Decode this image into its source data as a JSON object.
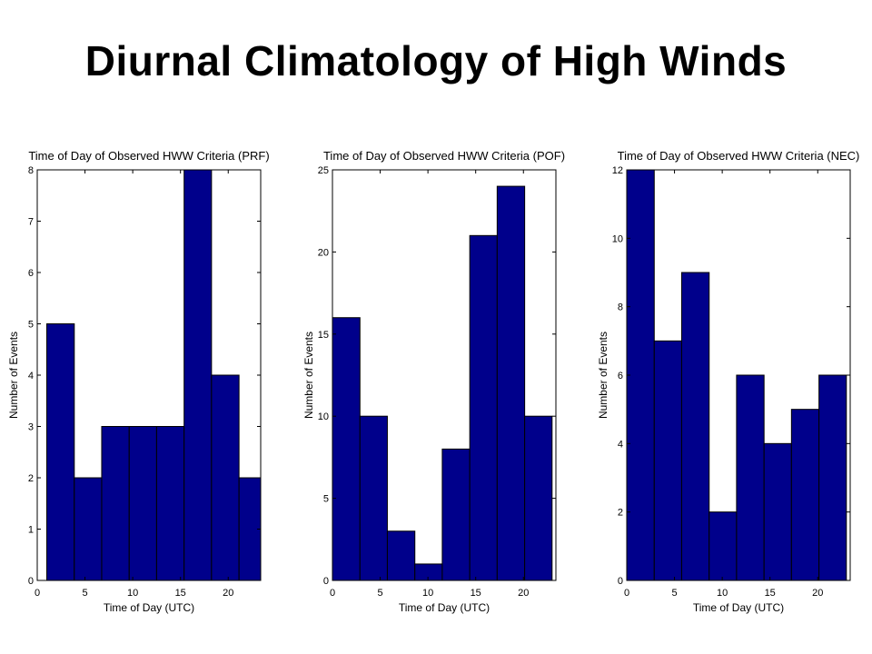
{
  "slide": {
    "title": "Diurnal Climatology of High Winds"
  },
  "colors": {
    "bar_fill": "#00008b",
    "bar_edge": "#000000",
    "axis": "#000000"
  },
  "chart_data": [
    {
      "type": "bar",
      "title": "Time of Day of Observed HWW Criteria (PRF)",
      "xlabel": "Time of Day (UTC)",
      "ylabel": "Number of Events",
      "bin_edges": [
        1.0,
        3.88,
        6.75,
        9.63,
        12.5,
        15.38,
        18.25,
        21.13,
        24.0
      ],
      "values": [
        5,
        2,
        3,
        3,
        3,
        8,
        4,
        2
      ],
      "xlim": [
        0,
        23.4
      ],
      "ylim": [
        0,
        8
      ],
      "xticks": [
        0,
        5,
        10,
        15,
        20
      ],
      "yticks": [
        0,
        1,
        2,
        3,
        4,
        5,
        6,
        7,
        8
      ]
    },
    {
      "type": "bar",
      "title": "Time of Day of Observed HWW Criteria (POF)",
      "xlabel": "Time of Day (UTC)",
      "ylabel": "Number of Events",
      "bin_edges": [
        0.0,
        2.88,
        5.75,
        8.63,
        11.5,
        14.38,
        17.25,
        20.13,
        23.0
      ],
      "values": [
        16,
        10,
        3,
        1,
        8,
        21,
        24,
        10
      ],
      "xlim": [
        0,
        23.4
      ],
      "ylim": [
        0,
        25
      ],
      "xticks": [
        0,
        5,
        10,
        15,
        20
      ],
      "yticks": [
        0,
        5,
        10,
        15,
        20,
        25
      ]
    },
    {
      "type": "bar",
      "title": "Time of Day of Observed HWW Criteria (NEC)",
      "xlabel": "Time of Day (UTC)",
      "ylabel": "Number of Events",
      "bin_edges": [
        0.0,
        2.88,
        5.75,
        8.63,
        11.5,
        14.38,
        17.25,
        20.13,
        23.0
      ],
      "values": [
        12,
        7,
        9,
        2,
        6,
        4,
        5,
        6
      ],
      "xlim": [
        0,
        23.4
      ],
      "ylim": [
        0,
        12
      ],
      "xticks": [
        0,
        5,
        10,
        15,
        20
      ],
      "yticks": [
        0,
        2,
        4,
        6,
        8,
        10,
        12
      ]
    }
  ]
}
